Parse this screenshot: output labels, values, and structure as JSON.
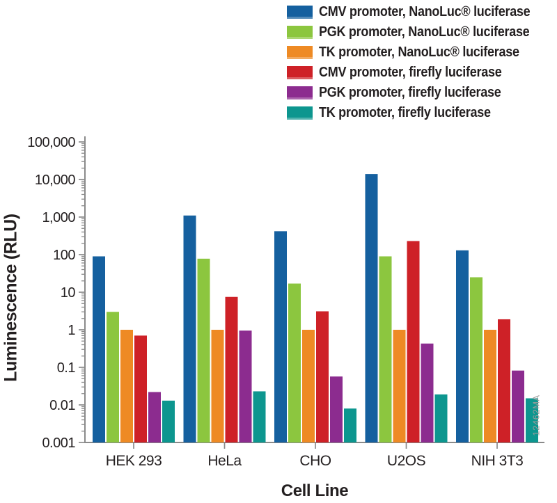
{
  "chart_data": {
    "type": "bar",
    "title": "",
    "xlabel": "Cell Line",
    "ylabel": "Luminescence (RLU)",
    "yscale": "log",
    "ylim": [
      0.001,
      100000
    ],
    "ytick_labels": [
      "100,000",
      "10,000",
      "1,000",
      "100",
      "10",
      "1",
      "0.1",
      "0.01",
      "0.001"
    ],
    "ytick_values": [
      100000,
      10000,
      1000,
      100,
      10,
      1,
      0.1,
      0.01,
      0.001
    ],
    "categories": [
      "HEK 293",
      "HeLa",
      "CHO",
      "U2OS",
      "NIH 3T3"
    ],
    "series": [
      {
        "name": "CMV promoter, NanoLuc® luciferase",
        "color": "#15609f",
        "values": [
          90,
          1100,
          420,
          14000,
          130
        ]
      },
      {
        "name": "PGK promoter, NanoLuc® luciferase",
        "color": "#8cc63f",
        "values": [
          3,
          78,
          17,
          90,
          25
        ]
      },
      {
        "name": "TK promoter, NanoLuc® luciferase",
        "color": "#ee8a24",
        "values": [
          1,
          1,
          1,
          1,
          1
        ]
      },
      {
        "name": "CMV promoter, firefly luciferase",
        "color": "#ce2127",
        "values": [
          0.7,
          7.5,
          3.1,
          230,
          1.9
        ]
      },
      {
        "name": "PGK promoter, firefly luciferase",
        "color": "#8c2c8f",
        "values": [
          0.022,
          0.95,
          0.057,
          0.43,
          0.082
        ]
      },
      {
        "name": "TK promoter, firefly luciferase",
        "color": "#0d968f",
        "values": [
          0.013,
          0.023,
          0.008,
          0.019,
          0.015
        ]
      }
    ],
    "legend_position": "top-right",
    "grid": false,
    "axis_color": "#8a8a8a",
    "text_color": "#231f20",
    "watermark": "12462MA"
  }
}
